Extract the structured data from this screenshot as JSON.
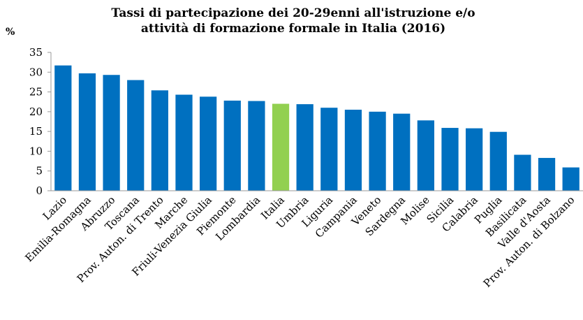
{
  "chart_data": {
    "type": "bar",
    "title": [
      "Tassi di partecipazione dei 20-29enni all'istruzione e/o",
      "attività di formazione formale in Italia (2016)"
    ],
    "y_label": "%",
    "categories": [
      "Lazio",
      "Emilia-Romagna",
      "Abruzzo",
      "Toscana",
      "Prov. Auton. di Trento",
      "Marche",
      "Friuli-Venezia Giulia",
      "Piemonte",
      "Lombardia",
      "Italia",
      "Umbria",
      "Liguria",
      "Campania",
      "Veneto",
      "Sardegna",
      "Molise",
      "Sicilia",
      "Calabria",
      "Puglia",
      "Basilicata",
      "Valle d'Aosta",
      "Prov. Auton. di Bolzano"
    ],
    "values": [
      31.7,
      29.7,
      29.3,
      28.0,
      25.4,
      24.3,
      23.8,
      22.8,
      22.7,
      22.0,
      21.9,
      21.0,
      20.5,
      20.0,
      19.5,
      17.8,
      15.9,
      15.8,
      14.9,
      9.1,
      8.3,
      5.9
    ],
    "colors": [
      "#0070c0",
      "#0070c0",
      "#0070c0",
      "#0070c0",
      "#0070c0",
      "#0070c0",
      "#0070c0",
      "#0070c0",
      "#0070c0",
      "#92d050",
      "#0070c0",
      "#0070c0",
      "#0070c0",
      "#0070c0",
      "#0070c0",
      "#0070c0",
      "#0070c0",
      "#0070c0",
      "#0070c0",
      "#0070c0",
      "#0070c0",
      "#0070c0"
    ],
    "ylim": [
      0,
      35
    ],
    "yticks": [
      0,
      5,
      10,
      15,
      20,
      25,
      30,
      35
    ],
    "grid": false
  }
}
